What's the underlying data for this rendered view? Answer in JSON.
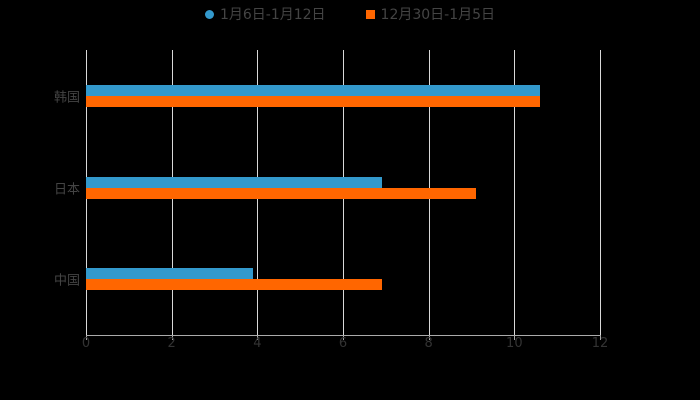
{
  "chart_data": {
    "type": "bar",
    "orientation": "horizontal",
    "title": "",
    "categories": [
      "韩国",
      "日本",
      "中国"
    ],
    "series": [
      {
        "name": "1月6日-1月12日",
        "color": "#3399cc",
        "values": [
          10.6,
          6.9,
          3.9
        ]
      },
      {
        "name": "12月30日-1月5日",
        "color": "#ff6600",
        "values": [
          10.6,
          9.1,
          6.9
        ]
      }
    ],
    "xlabel": "",
    "ylabel": "",
    "xlim": [
      0,
      12
    ],
    "xticks": [
      "0",
      "2",
      "4",
      "6",
      "8",
      "10",
      "12"
    ],
    "grid": true,
    "legend_position": "top"
  },
  "legend": {
    "items": [
      {
        "label": "1月6日-1月12日",
        "color": "#3399cc"
      },
      {
        "label": "12月30日-1月5日",
        "color": "#ff6600"
      }
    ]
  }
}
